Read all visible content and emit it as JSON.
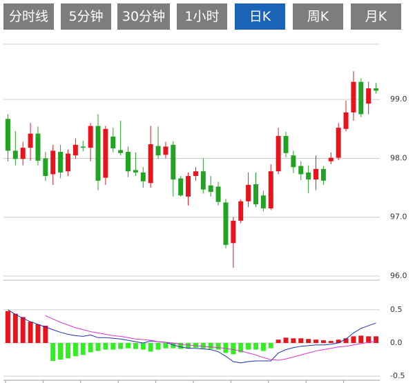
{
  "tabs": [
    "分时线",
    "5分钟",
    "30分钟",
    "1小时",
    "日K",
    "周K",
    "月K"
  ],
  "active_tab": 4,
  "chart_data": [
    {
      "type": "candlestick",
      "up_color": "#e8141c",
      "down_color": "#22a322",
      "open": [
        98.67,
        98.13,
        97.99,
        98.18,
        98.42,
        98.0,
        97.73,
        98.11,
        97.78,
        98.05,
        98.2,
        98.18,
        98.55,
        97.67,
        98.37,
        98.14,
        98.11,
        97.8,
        97.76,
        97.58,
        98.21,
        98.06,
        98.23,
        97.66,
        97.35,
        97.7,
        97.78,
        97.54,
        97.52,
        97.25,
        96.56,
        96.94,
        97.27,
        97.56,
        97.37,
        97.15,
        97.78,
        98.38,
        98.05,
        97.87,
        97.76,
        97.64,
        97.82,
        97.95,
        98.01,
        98.5,
        98.78,
        99.3,
        98.93,
        99.19
      ],
      "high": [
        98.75,
        98.46,
        98.28,
        98.6,
        98.54,
        98.11,
        98.23,
        98.23,
        98.15,
        98.34,
        98.3,
        98.6,
        98.75,
        98.55,
        98.52,
        98.64,
        98.2,
        98.1,
        97.85,
        98.55,
        98.54,
        98.28,
        98.29,
        97.7,
        97.76,
        97.85,
        98.0,
        97.7,
        97.6,
        97.31,
        97.0,
        97.3,
        97.76,
        97.76,
        97.45,
        97.9,
        98.52,
        98.45,
        98.13,
        97.95,
        97.88,
        98.05,
        97.87,
        98.1,
        98.6,
        98.98,
        99.48,
        99.36,
        99.3,
        99.28
      ],
      "low": [
        97.95,
        97.88,
        97.88,
        97.96,
        97.88,
        97.62,
        97.55,
        97.66,
        97.7,
        97.99,
        98.12,
        97.95,
        97.46,
        97.55,
        98.1,
        98.05,
        97.68,
        97.7,
        97.5,
        97.5,
        97.99,
        98.0,
        97.35,
        97.35,
        97.2,
        97.62,
        97.4,
        97.35,
        97.2,
        96.47,
        96.14,
        96.9,
        97.17,
        97.17,
        97.1,
        97.12,
        97.73,
        98.02,
        97.75,
        97.63,
        97.41,
        97.46,
        97.55,
        97.9,
        97.97,
        98.46,
        98.64,
        98.7,
        98.75,
        99.1
      ],
      "close": [
        98.13,
        97.99,
        98.18,
        98.42,
        97.96,
        97.7,
        98.13,
        97.76,
        98.08,
        98.23,
        98.18,
        98.55,
        97.62,
        98.5,
        98.17,
        98.09,
        97.78,
        97.76,
        97.61,
        98.24,
        98.05,
        98.2,
        97.64,
        97.37,
        97.7,
        97.78,
        97.47,
        97.43,
        97.26,
        96.53,
        96.94,
        97.27,
        97.55,
        97.22,
        97.15,
        97.78,
        98.38,
        98.09,
        97.85,
        97.73,
        97.64,
        97.82,
        97.62,
        98.01,
        98.52,
        98.78,
        99.3,
        98.75,
        99.19,
        99.15
      ],
      "ylim": [
        95.93,
        99.94
      ],
      "yticks": [
        {
          "value": 96,
          "label": "96.0"
        },
        {
          "value": 97,
          "label": "97.0"
        },
        {
          "value": 98,
          "label": "98.0"
        },
        {
          "value": 99,
          "label": "99.0"
        }
      ],
      "grid": true
    },
    {
      "type": "macd",
      "up_color": "#e8141c",
      "down_color": "#33ee22",
      "histogram": [
        0.48,
        0.44,
        0.39,
        0.32,
        0.28,
        0.26,
        -0.27,
        -0.25,
        -0.23,
        -0.2,
        -0.18,
        -0.14,
        -0.12,
        -0.1,
        -0.1,
        -0.09,
        -0.08,
        -0.09,
        -0.1,
        -0.13,
        -0.1,
        -0.08,
        -0.08,
        -0.09,
        -0.08,
        -0.07,
        -0.08,
        -0.09,
        -0.1,
        -0.15,
        -0.17,
        -0.14,
        -0.1,
        -0.1,
        -0.12,
        -0.08,
        0.05,
        0.08,
        0.07,
        0.07,
        0.06,
        0.05,
        0.04,
        0.03,
        0.05,
        0.07,
        0.1,
        0.11,
        0.1,
        0.1
      ],
      "series": [
        {
          "color": "#1c2fb0",
          "values": [
            0.5,
            0.43,
            0.37,
            0.32,
            0.28,
            0.24,
            0.2,
            0.16,
            0.13,
            0.11,
            0.1,
            0.12,
            0.08,
            0.08,
            0.07,
            0.06,
            0.04,
            0.02,
            0.0,
            0.03,
            0.02,
            0.01,
            -0.03,
            -0.06,
            -0.08,
            -0.08,
            -0.09,
            -0.1,
            -0.13,
            -0.2,
            -0.28,
            -0.3,
            -0.28,
            -0.27,
            -0.27,
            -0.27,
            -0.15,
            -0.1,
            -0.07,
            -0.05,
            -0.04,
            -0.03,
            -0.03,
            -0.02,
            0.0,
            0.06,
            0.15,
            0.22,
            0.26,
            0.3
          ]
        },
        {
          "color": "#e030d0",
          "values": [
            null,
            null,
            null,
            null,
            null,
            0.41,
            0.36,
            0.31,
            0.27,
            0.23,
            0.2,
            0.17,
            0.15,
            0.13,
            0.11,
            0.1,
            0.08,
            0.06,
            0.05,
            0.04,
            0.02,
            0.01,
            0.0,
            -0.02,
            -0.03,
            -0.04,
            -0.05,
            -0.06,
            -0.07,
            -0.08,
            -0.1,
            -0.12,
            -0.15,
            -0.18,
            -0.22,
            -0.25,
            -0.26,
            -0.24,
            -0.21,
            -0.18,
            -0.15,
            -0.12,
            -0.1,
            -0.08,
            -0.06,
            -0.05,
            -0.03,
            -0.01,
            0.01,
            0.03
          ]
        }
      ],
      "ylim": [
        -0.55,
        0.55
      ],
      "yticks": [
        -0.5,
        {
          "value": 0,
          "label": "0.0"
        },
        0.5
      ],
      "grid": true
    }
  ]
}
